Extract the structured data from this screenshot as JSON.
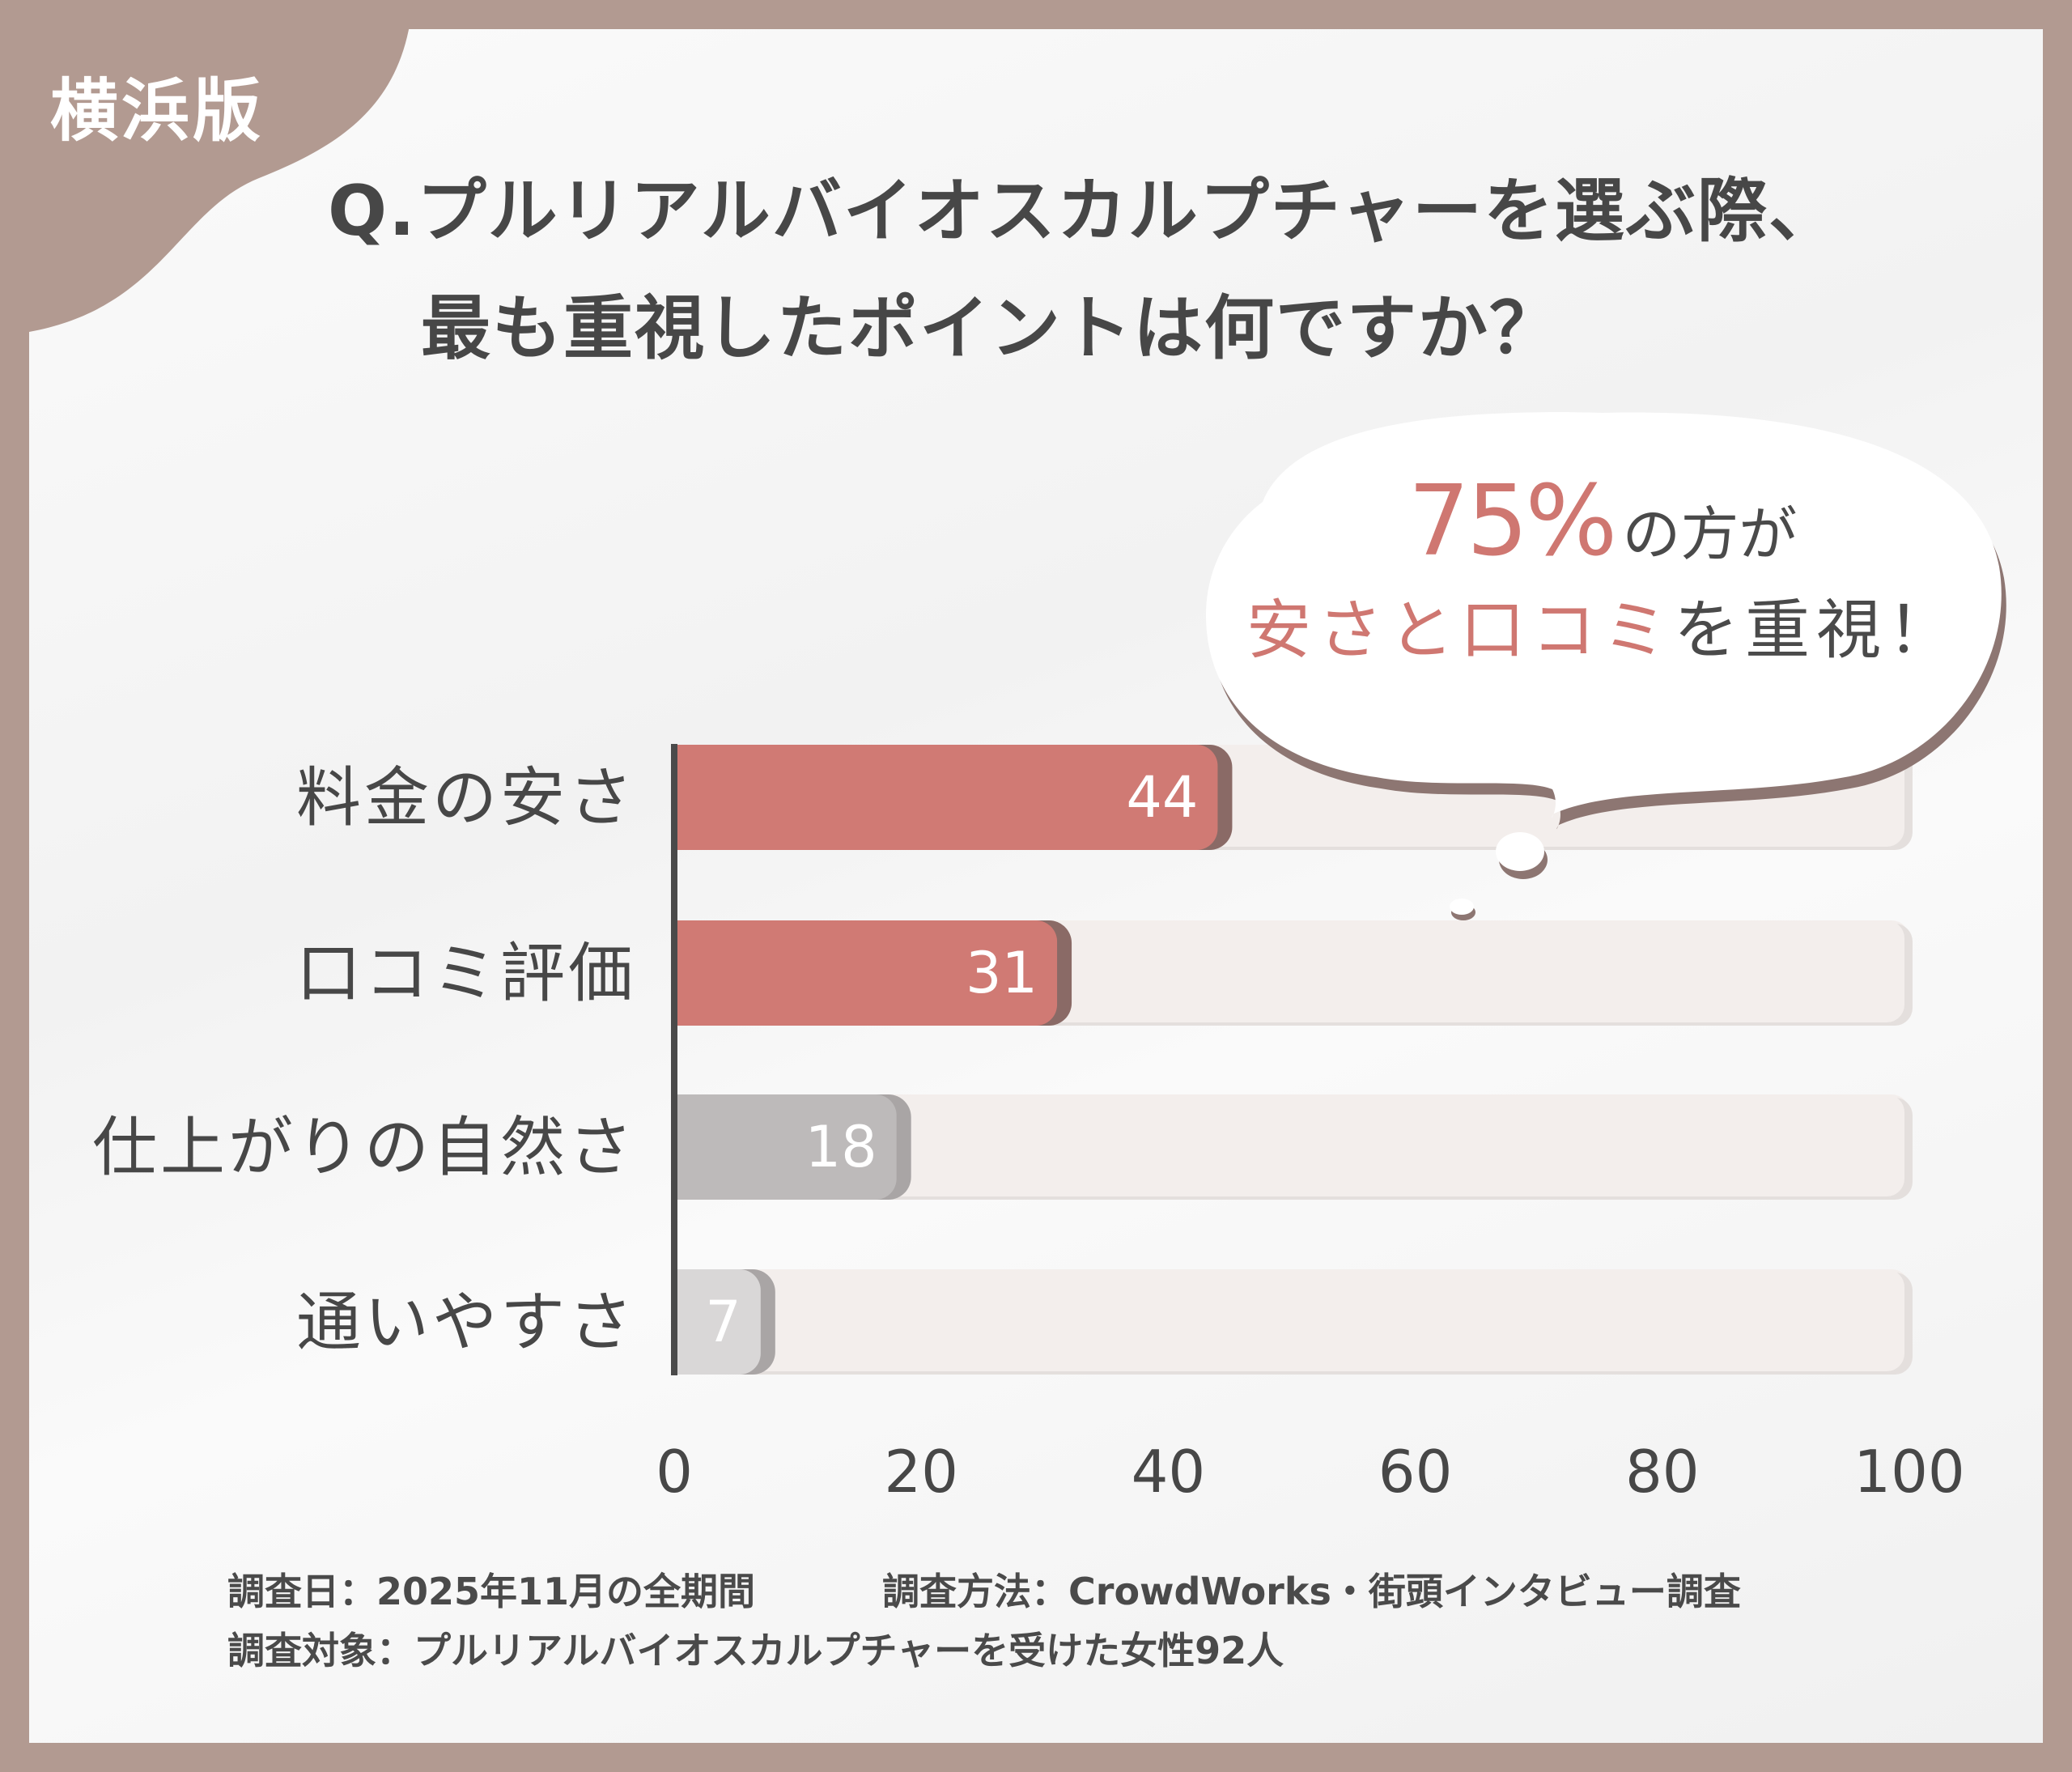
{
  "edition_tag": "横浜版",
  "title": {
    "line1": "Q.プルリアルバイオスカルプチャーを選ぶ際、",
    "line2": "最も重視したポイントは何ですか？"
  },
  "callout": {
    "highlight": "75%",
    "suffix": "の方が",
    "line2_highlight": "安さと口コミ",
    "line2_suffix": "を重視！"
  },
  "footer": {
    "date": "調査日：2025年11月の全期間",
    "method": "調査方法：CrowdWorks・街頭インタビュー調査",
    "target": "調査対象：プルリアルバイオスカルプチャーを受けた女性92人"
  },
  "colors": {
    "frame": "#b29a91",
    "highlight_bar": "#d07a74",
    "grey_bar": "#bdbaba",
    "light_bar": "#d9d7d7",
    "track": "#f3eeec",
    "text": "#474747"
  },
  "chart_data": {
    "type": "bar",
    "orientation": "horizontal",
    "categories": [
      "料金の安さ",
      "口コミ評価",
      "仕上がりの自然さ",
      "通いやすさ"
    ],
    "values": [
      44,
      31,
      18,
      7
    ],
    "data_labels": [
      "44",
      "31",
      "18",
      "7"
    ],
    "xlim": [
      0,
      100
    ],
    "xticks": [
      "0",
      "20",
      "40",
      "60",
      "80",
      "100"
    ],
    "grid": false,
    "bar_colors": [
      "#d07a74",
      "#d07a74",
      "#bdbaba",
      "#d9d7d7"
    ]
  }
}
